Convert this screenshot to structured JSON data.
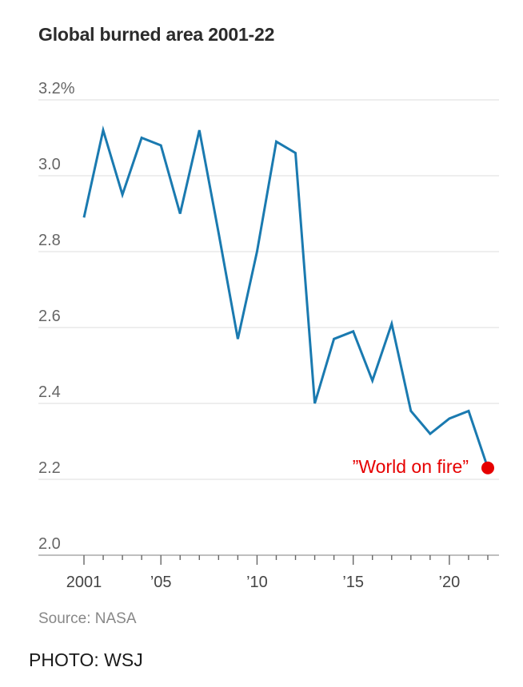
{
  "chart_data": {
    "type": "line",
    "title": "Global burned area 2001-22",
    "source": "Source: NASA",
    "ylim": [
      2.0,
      3.2
    ],
    "y_ticks": [
      {
        "value": 2.0,
        "label": "2.0"
      },
      {
        "value": 2.2,
        "label": "2.2"
      },
      {
        "value": 2.4,
        "label": "2.4"
      },
      {
        "value": 2.6,
        "label": "2.6"
      },
      {
        "value": 2.8,
        "label": "2.8"
      },
      {
        "value": 3.0,
        "label": "3.0"
      },
      {
        "value": 3.2,
        "label": "3.2%"
      }
    ],
    "x_tick_labels": [
      {
        "value": 2001,
        "label": "2001"
      },
      {
        "value": 2005,
        "label": "’05"
      },
      {
        "value": 2010,
        "label": "’10"
      },
      {
        "value": 2015,
        "label": "’15"
      },
      {
        "value": 2020,
        "label": "’20"
      }
    ],
    "x": [
      2001,
      2002,
      2003,
      2004,
      2005,
      2006,
      2007,
      2008,
      2009,
      2010,
      2011,
      2012,
      2013,
      2014,
      2015,
      2016,
      2017,
      2018,
      2019,
      2020,
      2021,
      2022
    ],
    "series": [
      {
        "values": [
          2.89,
          3.12,
          2.95,
          3.1,
          3.08,
          2.9,
          3.12,
          2.85,
          2.57,
          2.8,
          3.09,
          3.06,
          2.4,
          2.57,
          2.59,
          2.46,
          2.61,
          2.38,
          2.32,
          2.36,
          2.38,
          2.23
        ],
        "color": "#1a7ab0"
      }
    ],
    "annotation": {
      "text": "”World on fire”",
      "x": 2022,
      "y": 2.23,
      "color": "#e60000"
    },
    "grid": true
  },
  "credit": "PHOTO: WSJ"
}
